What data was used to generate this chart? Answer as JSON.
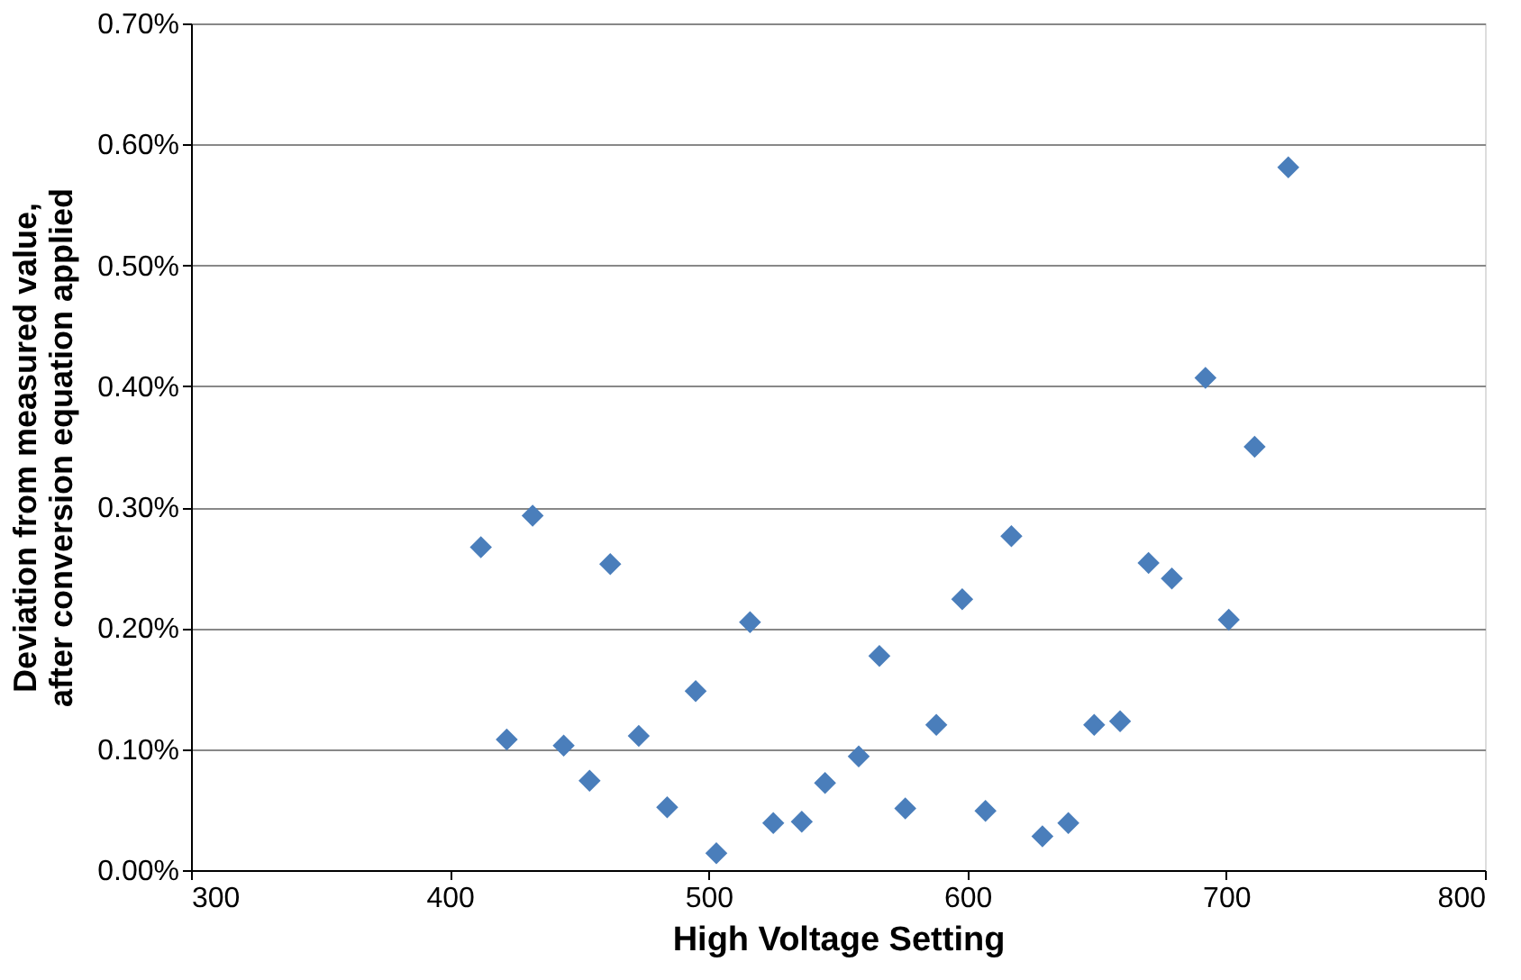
{
  "chart_data": {
    "type": "scatter",
    "xlabel": "High Voltage Setting",
    "ylabel": "Deviation from measured value, after conversion equation applied",
    "x": [
      412,
      422,
      432,
      444,
      454,
      462,
      473,
      484,
      495,
      503,
      516,
      525,
      536,
      545,
      558,
      566,
      576,
      588,
      598,
      607,
      617,
      629,
      639,
      649,
      659,
      670,
      679,
      692,
      701,
      711,
      724
    ],
    "series": [
      {
        "color": "#4a7ebb",
        "values": [
          0.267,
          0.108,
          0.293,
          0.103,
          0.074,
          0.253,
          0.111,
          0.052,
          0.148,
          0.014,
          0.205,
          0.039,
          0.04,
          0.072,
          0.094,
          0.177,
          0.051,
          0.12,
          0.224,
          0.049,
          0.276,
          0.028,
          0.039,
          0.12,
          0.123,
          0.254,
          0.241,
          0.407,
          0.207,
          0.35,
          0.581
        ]
      }
    ],
    "xlim": [
      300,
      800
    ],
    "xticks": [
      300,
      400,
      500,
      600,
      700,
      800
    ],
    "ylim": [
      0,
      0.7
    ],
    "yticks": [
      {
        "value": 0,
        "label": "0.00%"
      },
      {
        "value": 0.1,
        "label": "0.10%"
      },
      {
        "value": 0.2,
        "label": "0.20%"
      },
      {
        "value": 0.3,
        "label": "0.30%"
      },
      {
        "value": 0.4,
        "label": "0.40%"
      },
      {
        "value": 0.5,
        "label": "0.50%"
      },
      {
        "value": 0.6,
        "label": "0.60%"
      },
      {
        "value": 0.7,
        "label": "0.70%"
      }
    ],
    "grid": "y",
    "marker": "diamond",
    "legend": false
  }
}
